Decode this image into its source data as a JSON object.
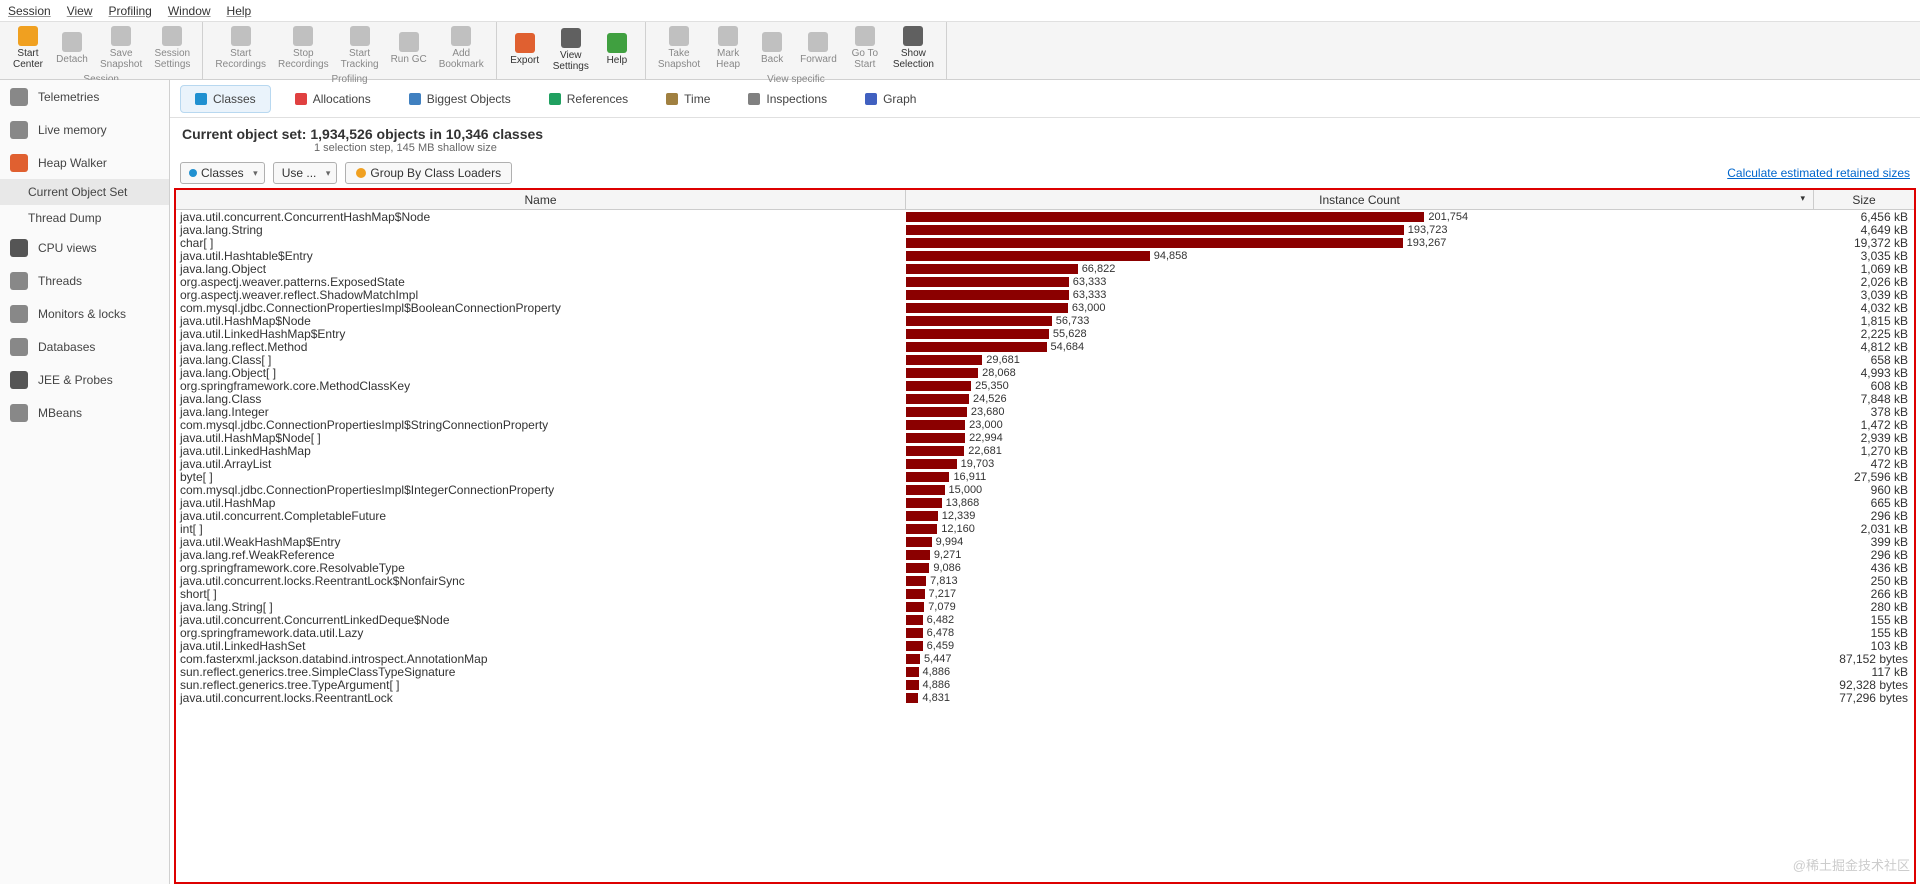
{
  "menu": [
    "Session",
    "View",
    "Profiling",
    "Window",
    "Help"
  ],
  "toolbar_groups": [
    {
      "cap": "Session",
      "items": [
        {
          "l1": "Start",
          "l2": "Center",
          "color": "#f0a020",
          "active": true
        },
        {
          "l1": "Detach",
          "l2": "",
          "color": "#c0c0c0"
        },
        {
          "l1": "Save",
          "l2": "Snapshot",
          "color": "#c0c0c0"
        },
        {
          "l1": "Session",
          "l2": "Settings",
          "color": "#c0c0c0"
        }
      ]
    },
    {
      "cap": "Profiling",
      "items": [
        {
          "l1": "Start",
          "l2": "Recordings",
          "color": "#c0c0c0"
        },
        {
          "l1": "Stop",
          "l2": "Recordings",
          "color": "#c0c0c0"
        },
        {
          "l1": "Start",
          "l2": "Tracking",
          "color": "#c0c0c0"
        },
        {
          "l1": "Run GC",
          "l2": "",
          "color": "#c0c0c0"
        },
        {
          "l1": "Add",
          "l2": "Bookmark",
          "color": "#c0c0c0"
        }
      ]
    },
    {
      "cap": "",
      "items": [
        {
          "l1": "Export",
          "l2": "",
          "color": "#e06030",
          "active": true
        },
        {
          "l1": "View",
          "l2": "Settings",
          "color": "#606060",
          "active": true
        },
        {
          "l1": "Help",
          "l2": "",
          "color": "#40a040",
          "active": true
        }
      ]
    },
    {
      "cap": "View specific",
      "items": [
        {
          "l1": "Take",
          "l2": "Snapshot",
          "color": "#c0c0c0"
        },
        {
          "l1": "Mark",
          "l2": "Heap",
          "color": "#c0c0c0"
        },
        {
          "l1": "Back",
          "l2": "",
          "color": "#c0c0c0"
        },
        {
          "l1": "Forward",
          "l2": "",
          "color": "#c0c0c0"
        },
        {
          "l1": "Go To",
          "l2": "Start",
          "color": "#c0c0c0"
        },
        {
          "l1": "Show",
          "l2": "Selection",
          "color": "#606060",
          "active": true
        }
      ]
    }
  ],
  "sidebar": [
    {
      "label": "Telemetries",
      "color": "#888"
    },
    {
      "label": "Live memory",
      "color": "#888"
    },
    {
      "label": "Heap Walker",
      "color": "#e06030",
      "sel": false
    },
    {
      "label": "Current Object Set",
      "sub": true,
      "sel": true
    },
    {
      "label": "Thread Dump",
      "sub": true
    },
    {
      "label": "CPU views",
      "color": "#555"
    },
    {
      "label": "Threads",
      "color": "#888"
    },
    {
      "label": "Monitors & locks",
      "color": "#888"
    },
    {
      "label": "Databases",
      "color": "#888"
    },
    {
      "label": "JEE & Probes",
      "color": "#555"
    },
    {
      "label": "MBeans",
      "color": "#888"
    }
  ],
  "tabs": [
    {
      "label": "Classes",
      "color": "#2090d0",
      "sel": true
    },
    {
      "label": "Allocations",
      "color": "#e04040"
    },
    {
      "label": "Biggest Objects",
      "color": "#4080c0"
    },
    {
      "label": "References",
      "color": "#20a060"
    },
    {
      "label": "Time",
      "color": "#a08040"
    },
    {
      "label": "Inspections",
      "color": "#808080"
    },
    {
      "label": "Graph",
      "color": "#4060c0"
    }
  ],
  "header": {
    "title": "Current object set:  1,934,526 objects in 10,346 classes",
    "sub": "1 selection step, 145 MB shallow size"
  },
  "filter": {
    "dd1": "Classes",
    "dd2": "Use ...",
    "btn": "Group By Class Loaders",
    "link": "Calculate estimated retained sizes"
  },
  "cols": {
    "name": "Name",
    "count": "Instance Count",
    "size": "Size"
  },
  "max_count": 201754,
  "rows": [
    {
      "n": "java.util.concurrent.ConcurrentHashMap$Node",
      "c": 201754,
      "s": "6,456 kB"
    },
    {
      "n": "java.lang.String",
      "c": 193723,
      "s": "4,649 kB"
    },
    {
      "n": "char[ ]",
      "c": 193267,
      "s": "19,372 kB"
    },
    {
      "n": "java.util.Hashtable$Entry",
      "c": 94858,
      "s": "3,035 kB"
    },
    {
      "n": "java.lang.Object",
      "c": 66822,
      "s": "1,069 kB"
    },
    {
      "n": "org.aspectj.weaver.patterns.ExposedState",
      "c": 63333,
      "s": "2,026 kB"
    },
    {
      "n": "org.aspectj.weaver.reflect.ShadowMatchImpl",
      "c": 63333,
      "s": "3,039 kB"
    },
    {
      "n": "com.mysql.jdbc.ConnectionPropertiesImpl$BooleanConnectionProperty",
      "c": 63000,
      "s": "4,032 kB"
    },
    {
      "n": "java.util.HashMap$Node",
      "c": 56733,
      "s": "1,815 kB"
    },
    {
      "n": "java.util.LinkedHashMap$Entry",
      "c": 55628,
      "s": "2,225 kB"
    },
    {
      "n": "java.lang.reflect.Method",
      "c": 54684,
      "s": "4,812 kB"
    },
    {
      "n": "java.lang.Class[ ]",
      "c": 29681,
      "s": "658 kB"
    },
    {
      "n": "java.lang.Object[ ]",
      "c": 28068,
      "s": "4,993 kB"
    },
    {
      "n": "org.springframework.core.MethodClassKey",
      "c": 25350,
      "s": "608 kB"
    },
    {
      "n": "java.lang.Class",
      "c": 24526,
      "s": "7,848 kB"
    },
    {
      "n": "java.lang.Integer",
      "c": 23680,
      "s": "378 kB"
    },
    {
      "n": "com.mysql.jdbc.ConnectionPropertiesImpl$StringConnectionProperty",
      "c": 23000,
      "s": "1,472 kB"
    },
    {
      "n": "java.util.HashMap$Node[ ]",
      "c": 22994,
      "s": "2,939 kB"
    },
    {
      "n": "java.util.LinkedHashMap",
      "c": 22681,
      "s": "1,270 kB"
    },
    {
      "n": "java.util.ArrayList",
      "c": 19703,
      "s": "472 kB"
    },
    {
      "n": "byte[ ]",
      "c": 16911,
      "s": "27,596 kB"
    },
    {
      "n": "com.mysql.jdbc.ConnectionPropertiesImpl$IntegerConnectionProperty",
      "c": 15000,
      "s": "960 kB"
    },
    {
      "n": "java.util.HashMap",
      "c": 13868,
      "s": "665 kB"
    },
    {
      "n": "java.util.concurrent.CompletableFuture",
      "c": 12339,
      "s": "296 kB"
    },
    {
      "n": "int[ ]",
      "c": 12160,
      "s": "2,031 kB"
    },
    {
      "n": "java.util.WeakHashMap$Entry",
      "c": 9994,
      "s": "399 kB"
    },
    {
      "n": "java.lang.ref.WeakReference",
      "c": 9271,
      "s": "296 kB"
    },
    {
      "n": "org.springframework.core.ResolvableType",
      "c": 9086,
      "s": "436 kB"
    },
    {
      "n": "java.util.concurrent.locks.ReentrantLock$NonfairSync",
      "c": 7813,
      "s": "250 kB"
    },
    {
      "n": "short[ ]",
      "c": 7217,
      "s": "266 kB"
    },
    {
      "n": "java.lang.String[ ]",
      "c": 7079,
      "s": "280 kB"
    },
    {
      "n": "java.util.concurrent.ConcurrentLinkedDeque$Node",
      "c": 6482,
      "s": "155 kB"
    },
    {
      "n": "org.springframework.data.util.Lazy",
      "c": 6478,
      "s": "155 kB"
    },
    {
      "n": "java.util.LinkedHashSet",
      "c": 6459,
      "s": "103 kB"
    },
    {
      "n": "com.fasterxml.jackson.databind.introspect.AnnotationMap",
      "c": 5447,
      "s": "87,152 bytes"
    },
    {
      "n": "sun.reflect.generics.tree.SimpleClassTypeSignature",
      "c": 4886,
      "s": "117 kB"
    },
    {
      "n": "sun.reflect.generics.tree.TypeArgument[ ]",
      "c": 4886,
      "s": "92,328 bytes"
    },
    {
      "n": "java.util.concurrent.locks.ReentrantLock",
      "c": 4831,
      "s": "77,296 bytes"
    }
  ],
  "watermark": "@稀土掘金技术社区"
}
